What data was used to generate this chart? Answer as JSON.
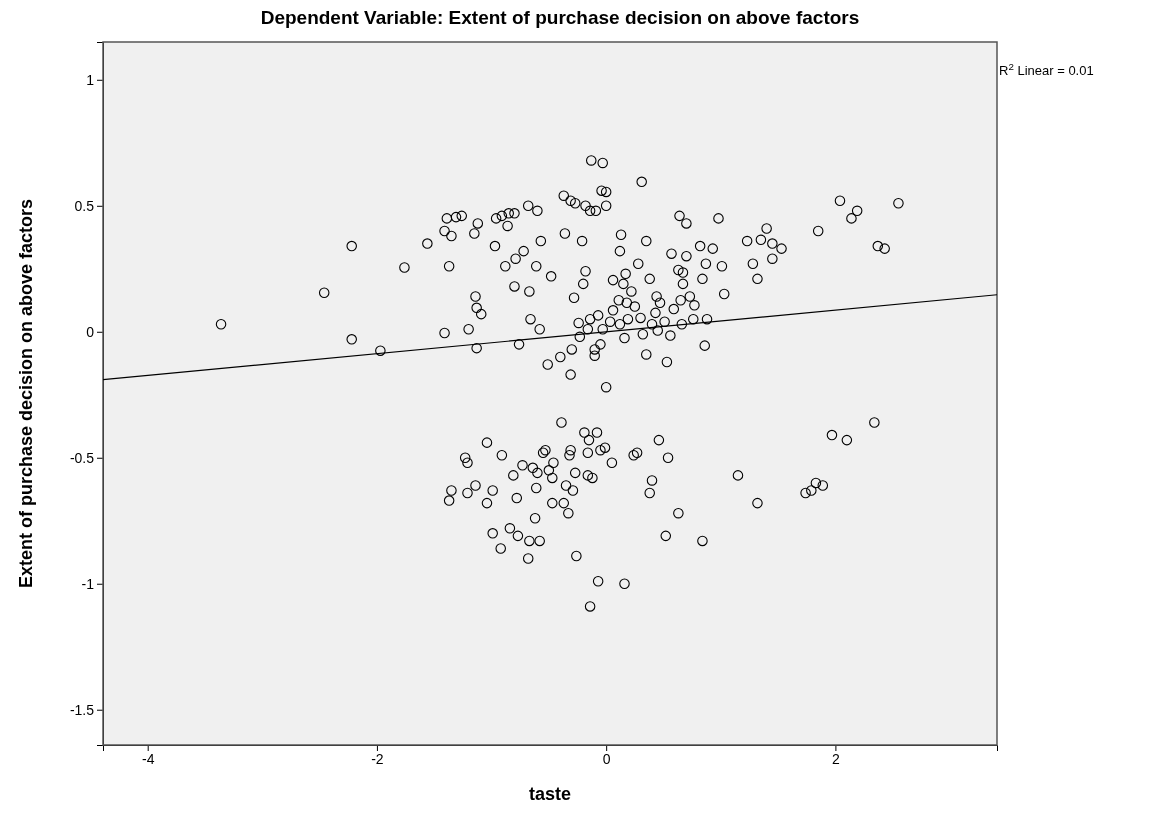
{
  "chart_data": {
    "type": "scatter",
    "title": "Dependent Variable: Extent of purchase decision on above factors",
    "xlabel": "taste",
    "ylabel": "Extent of purchase decision on above factors",
    "annotations": [
      "R$^{2}$ Linear = 0.01"
    ],
    "xlim": [
      -4.39,
      3.41
    ],
    "ylim": [
      -1.64,
      1.15
    ],
    "xticks": [
      -4,
      -2,
      0,
      2
    ],
    "yticks": [
      -1.5,
      -1,
      -0.5,
      0,
      0.5,
      1
    ],
    "grid": false,
    "series": [
      {
        "color": "#000000",
        "marker": "circle",
        "x": [
          -3.36,
          -2.46,
          -2.22,
          -2.22,
          -1.97,
          -1.76,
          -1.56,
          -1.41,
          -1.39,
          -1.41,
          -1.37,
          -1.35,
          -1.31,
          -1.26,
          -1.15,
          -1.12,
          -1.14,
          -1.13,
          -1.09,
          -1.13,
          -1.2,
          -0.96,
          -0.91,
          -0.85,
          -0.86,
          -0.8,
          -0.68,
          -0.6,
          -0.97,
          -0.88,
          -0.8,
          -0.72,
          -0.79,
          -0.61,
          -0.67,
          -0.76,
          -0.66,
          -0.58,
          -0.57,
          -0.48,
          -0.51,
          -0.4,
          -0.37,
          -0.31,
          -0.27,
          -0.36,
          -0.28,
          -0.3,
          -0.31,
          -0.24,
          -0.21,
          -0.18,
          -0.14,
          -0.09,
          -0.13,
          -0.03,
          -0.04,
          0.0,
          0.0,
          -0.18,
          -0.2,
          -0.23,
          -0.1,
          -0.1,
          -0.05,
          0.0,
          -0.14,
          -0.07,
          -0.16,
          -0.03,
          0.035,
          0.06,
          0.11,
          0.12,
          0.13,
          0.06,
          0.15,
          0.17,
          0.18,
          0.22,
          0.25,
          0.12,
          0.19,
          0.16,
          0.3,
          0.32,
          0.35,
          0.31,
          0.35,
          0.28,
          0.38,
          0.44,
          0.47,
          0.43,
          0.4,
          0.45,
          0.51,
          0.56,
          0.53,
          0.59,
          0.65,
          0.67,
          0.57,
          0.63,
          0.67,
          0.7,
          0.73,
          0.77,
          0.66,
          0.76,
          0.64,
          0.7,
          0.82,
          0.84,
          0.87,
          0.86,
          0.88,
          0.93,
          0.98,
          1.01,
          1.03,
          1.23,
          1.28,
          1.32,
          1.35,
          1.4,
          1.45,
          1.45,
          1.53,
          1.85,
          2.04,
          2.14,
          2.19,
          2.37,
          2.43,
          2.55,
          -0.39,
          -1.04,
          -1.23,
          -1.21,
          -0.91,
          -0.19,
          -0.08,
          -0.15,
          -0.55,
          -0.53,
          -0.31,
          -0.32,
          -0.16,
          -0.05,
          -0.01,
          0.05,
          0.24,
          0.27,
          0.46,
          0.54,
          -0.73,
          -0.64,
          -0.6,
          -0.5,
          -0.46,
          -0.47,
          -0.81,
          -1.14,
          -1.35,
          -1.37,
          -1.21,
          -0.99,
          -1.04,
          -0.78,
          -0.61,
          -0.35,
          -0.29,
          -0.27,
          -0.16,
          -0.12,
          -0.47,
          -0.37,
          -0.33,
          -0.62,
          -0.84,
          -0.99,
          -0.77,
          -0.67,
          -0.58,
          -0.92,
          -0.68,
          -0.26,
          -0.07,
          0.16,
          -0.14,
          0.4,
          0.38,
          0.63,
          0.52,
          0.84,
          1.15,
          1.32,
          1.97,
          2.1,
          2.34,
          1.74,
          1.79,
          1.83,
          1.89
        ],
        "values": [
          0.03,
          0.155,
          0.34,
          -0.03,
          -0.075,
          0.255,
          0.35,
          0.4,
          0.45,
          -0.005,
          0.26,
          0.38,
          0.455,
          0.46,
          0.39,
          0.43,
          0.14,
          0.095,
          0.07,
          -0.065,
          0.01,
          0.45,
          0.46,
          0.47,
          0.42,
          0.47,
          0.5,
          0.48,
          0.34,
          0.26,
          0.18,
          0.32,
          0.29,
          0.26,
          0.16,
          -0.05,
          0.05,
          0.01,
          0.36,
          0.22,
          -0.13,
          -0.1,
          0.54,
          0.52,
          0.51,
          0.39,
          0.135,
          -0.07,
          -0.17,
          0.035,
          0.36,
          0.5,
          0.48,
          0.48,
          0.68,
          0.67,
          0.56,
          0.555,
          0.5,
          0.24,
          0.19,
          -0.02,
          -0.07,
          -0.095,
          -0.05,
          -0.22,
          0.05,
          0.065,
          0.01,
          0.01,
          0.04,
          0.085,
          0.125,
          0.32,
          0.385,
          0.205,
          0.19,
          0.23,
          0.115,
          0.16,
          0.1,
          0.03,
          0.05,
          -0.025,
          0.055,
          -0.01,
          -0.09,
          0.595,
          0.36,
          0.27,
          0.21,
          0.14,
          0.115,
          0.075,
          0.03,
          0.005,
          0.04,
          -0.015,
          -0.12,
          0.09,
          0.125,
          0.235,
          0.31,
          0.245,
          0.19,
          0.3,
          0.14,
          0.105,
          0.03,
          0.05,
          0.46,
          0.43,
          0.34,
          0.21,
          0.27,
          -0.055,
          0.05,
          0.33,
          0.45,
          0.26,
          0.15,
          0.36,
          0.27,
          0.21,
          0.365,
          0.41,
          0.35,
          0.29,
          0.33,
          0.4,
          0.52,
          0.45,
          0.48,
          0.34,
          0.33,
          0.51,
          -0.36,
          -0.44,
          -0.5,
          -0.52,
          -0.49,
          -0.4,
          -0.4,
          -0.43,
          -0.48,
          -0.47,
          -0.47,
          -0.49,
          -0.48,
          -0.47,
          -0.46,
          -0.52,
          -0.49,
          -0.48,
          -0.43,
          -0.5,
          -0.53,
          -0.54,
          -0.56,
          -0.55,
          -0.52,
          -0.58,
          -0.57,
          -0.61,
          -0.63,
          -0.67,
          -0.64,
          -0.63,
          -0.68,
          -0.66,
          -0.62,
          -0.61,
          -0.63,
          -0.56,
          -0.57,
          -0.58,
          -0.68,
          -0.68,
          -0.72,
          -0.74,
          -0.78,
          -0.8,
          -0.81,
          -0.83,
          -0.83,
          -0.86,
          -0.9,
          -0.89,
          -0.99,
          -1.0,
          -1.09,
          -0.59,
          -0.64,
          -0.72,
          -0.81,
          -0.83,
          -0.57,
          -0.68,
          -0.41,
          -0.43,
          -0.36,
          -0.64,
          -0.63,
          -0.6,
          -0.61
        ]
      },
      {
        "type": "line",
        "color": "#000000",
        "x": [
          -4.39,
          3.41
        ],
        "values": [
          -0.19,
          0.147
        ]
      }
    ]
  }
}
